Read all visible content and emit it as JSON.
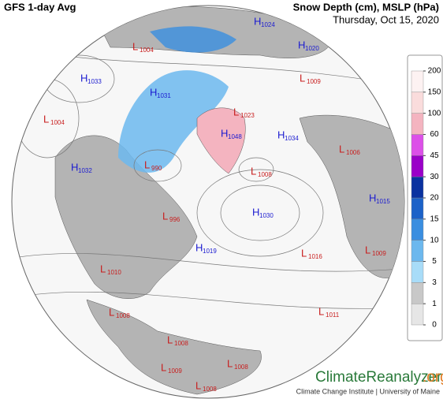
{
  "header": {
    "title": "GFS 1-day Avg",
    "variables": "Snow Depth (cm), MSLP (hPa)",
    "date": "Thursday, Oct 15, 2020"
  },
  "legend": {
    "levels": [
      0,
      1,
      3,
      5,
      10,
      15,
      20,
      30,
      45,
      60,
      100,
      150,
      200
    ],
    "colors": [
      "#e6e6e6",
      "#c8c8c8",
      "#a8dcf8",
      "#6cb8ee",
      "#3a8ee0",
      "#1c62c8",
      "#0a32a0",
      "#9a00c8",
      "#dc50e8",
      "#f4b4c0",
      "#fadcdc",
      "#fdf2f2"
    ]
  },
  "pressure_centers": [
    {
      "type": "H",
      "value": 1024
    },
    {
      "type": "L",
      "value": 1004
    },
    {
      "type": "H",
      "value": 1033
    },
    {
      "type": "H",
      "value": 1031
    },
    {
      "type": "L",
      "value": 1004
    },
    {
      "type": "H",
      "value": 1032
    },
    {
      "type": "L",
      "value": 990
    },
    {
      "type": "L",
      "value": 1023
    },
    {
      "type": "H",
      "value": 1048
    },
    {
      "type": "H",
      "value": 1034
    },
    {
      "type": "L",
      "value": 1008
    },
    {
      "type": "H",
      "value": 1030
    },
    {
      "type": "L",
      "value": 1006
    },
    {
      "type": "H",
      "value": 1015
    },
    {
      "type": "L",
      "value": 1009
    },
    {
      "type": "H",
      "value": 1020
    },
    {
      "type": "L",
      "value": 996
    },
    {
      "type": "H",
      "value": 1019
    },
    {
      "type": "L",
      "value": 1016
    },
    {
      "type": "L",
      "value": 1009
    },
    {
      "type": "L",
      "value": 1010
    },
    {
      "type": "L",
      "value": 1008
    },
    {
      "type": "L",
      "value": 1011
    },
    {
      "type": "L",
      "value": 1008
    },
    {
      "type": "L",
      "value": 1008
    },
    {
      "type": "L",
      "value": 1009
    },
    {
      "type": "L",
      "value": 1008
    }
  ],
  "logo": {
    "name": "ClimateReanalyzer",
    "domain": ".org",
    "credit": "Climate Change Institute | University of Maine"
  }
}
